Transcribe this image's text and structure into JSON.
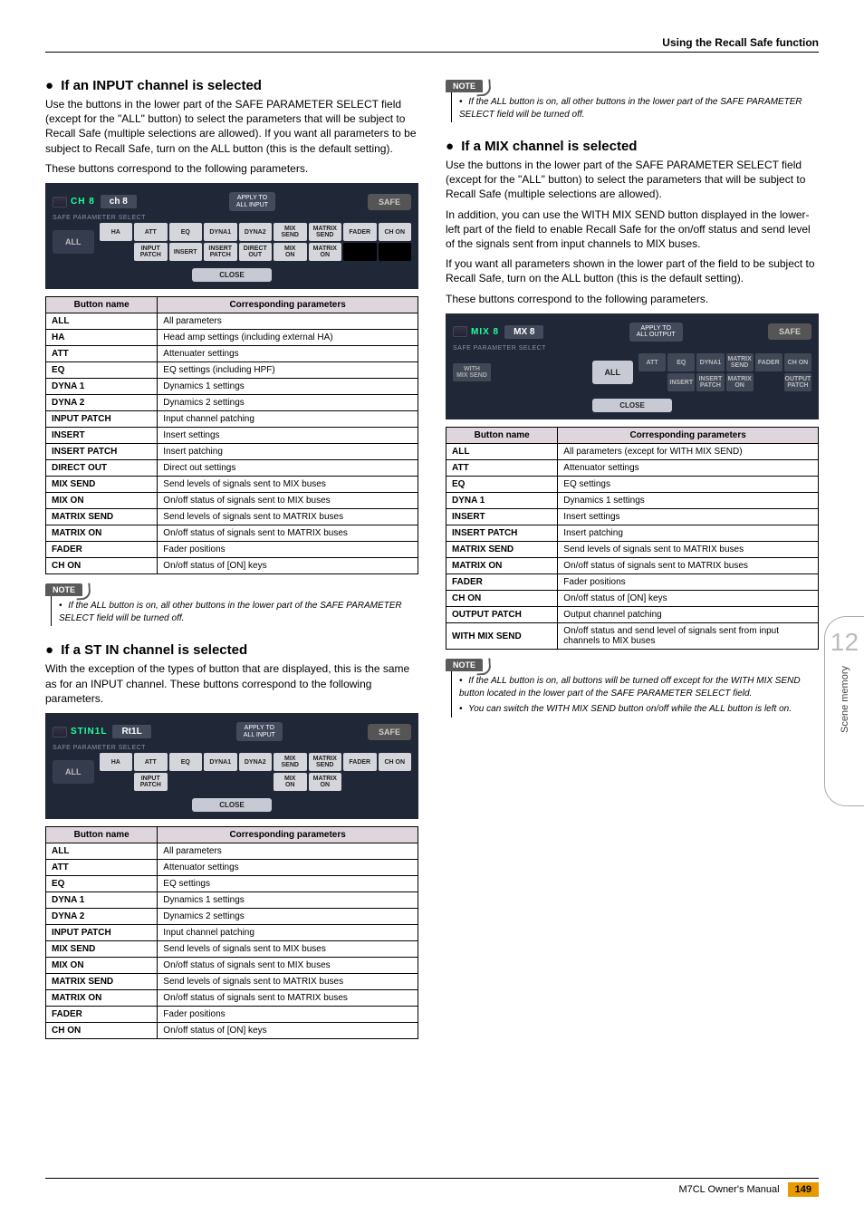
{
  "header": {
    "title": "Using the Recall Safe function"
  },
  "side_tab": {
    "number": "12",
    "label": "Scene memory"
  },
  "footer": {
    "manual": "M7CL  Owner's Manual",
    "page": "149"
  },
  "sec_input": {
    "heading": "If an INPUT channel is selected",
    "para1": "Use the buttons in the lower part of the SAFE PARAMETER SELECT field (except for the \"ALL\" button) to select the parameters that will be subject to Recall Safe (multiple selections are allowed). If you want all parameters to be subject to Recall Safe, turn on the ALL button (this is the default setting).",
    "para2": "These buttons correspond to the following parameters.",
    "panel": {
      "chan": "CH 8",
      "name": "ch 8",
      "apply": "APPLY TO\nALL INPUT",
      "safe": "SAFE",
      "sps": "SAFE PARAMETER SELECT",
      "all": "ALL",
      "close": "CLOSE",
      "r1": [
        "HA",
        "ATT",
        "EQ",
        "DYNA1",
        "DYNA2",
        "MIX\nSEND",
        "MATRIX\nSEND",
        "FADER",
        "CH ON"
      ],
      "r2": [
        "",
        "INPUT\nPATCH",
        "INSERT",
        "INSERT\nPATCH",
        "DIRECT\nOUT",
        "MIX\nON",
        "MATRIX\nON",
        "",
        ""
      ]
    },
    "table": {
      "h1": "Button name",
      "h2": "Corresponding parameters",
      "rows": [
        [
          "ALL",
          "All parameters"
        ],
        [
          "HA",
          "Head amp settings (including external HA)"
        ],
        [
          "ATT",
          "Attenuater settings"
        ],
        [
          "EQ",
          "EQ settings (including HPF)"
        ],
        [
          "DYNA 1",
          "Dynamics 1 settings"
        ],
        [
          "DYNA 2",
          "Dynamics 2 settings"
        ],
        [
          "INPUT PATCH",
          "Input channel patching"
        ],
        [
          "INSERT",
          "Insert settings"
        ],
        [
          "INSERT PATCH",
          "Insert patching"
        ],
        [
          "DIRECT OUT",
          "Direct out settings"
        ],
        [
          "MIX SEND",
          "Send levels of signals sent to MIX buses"
        ],
        [
          "MIX ON",
          "On/off status of signals sent to MIX buses"
        ],
        [
          "MATRIX SEND",
          "Send levels of signals sent to MATRIX buses"
        ],
        [
          "MATRIX ON",
          "On/off status of signals sent to MATRIX buses"
        ],
        [
          "FADER",
          "Fader positions"
        ],
        [
          "CH ON",
          "On/off status of [ON] keys"
        ]
      ]
    },
    "note": "If the ALL button is on, all other buttons in the lower part of the SAFE PARAMETER SELECT field will be turned off."
  },
  "sec_stin": {
    "heading": "If a ST IN channel is selected",
    "para1": "With the exception of the types of button that are displayed, this is the same as for an INPUT channel. These buttons correspond to the following parameters.",
    "panel": {
      "chan": "STIN1L",
      "name": "Rt1L",
      "apply": "APPLY TO\nALL INPUT",
      "safe": "SAFE",
      "sps": "SAFE PARAMETER SELECT",
      "all": "ALL",
      "close": "CLOSE",
      "r1": [
        "HA",
        "ATT",
        "EQ",
        "DYNA1",
        "DYNA2",
        "MIX\nSEND",
        "MATRIX\nSEND",
        "FADER",
        "CH ON"
      ],
      "r2": [
        "",
        "INPUT\nPATCH",
        "",
        "",
        "",
        "MIX\nON",
        "MATRIX\nON",
        "",
        ""
      ]
    },
    "table": {
      "h1": "Button name",
      "h2": "Corresponding parameters",
      "rows": [
        [
          "ALL",
          "All parameters"
        ],
        [
          "ATT",
          "Attenuator settings"
        ],
        [
          "EQ",
          "EQ settings"
        ],
        [
          "DYNA 1",
          "Dynamics 1 settings"
        ],
        [
          "DYNA 2",
          "Dynamics 2 settings"
        ],
        [
          "INPUT PATCH",
          "Input channel patching"
        ],
        [
          "MIX SEND",
          "Send levels of signals sent to MIX buses"
        ],
        [
          "MIX ON",
          "On/off status of signals sent to MIX buses"
        ],
        [
          "MATRIX SEND",
          "Send levels of signals sent to MATRIX buses"
        ],
        [
          "MATRIX ON",
          "On/off status of signals sent to MATRIX buses"
        ],
        [
          "FADER",
          "Fader positions"
        ],
        [
          "CH ON",
          "On/off status of [ON] keys"
        ]
      ]
    }
  },
  "sec_stin_note": {
    "note": "If the ALL button is on, all other buttons in the lower part of the SAFE PARAMETER SELECT field will be turned off."
  },
  "sec_mix": {
    "heading": "If a MIX channel is selected",
    "para1": "Use the buttons in the lower part of the SAFE PARAMETER SELECT field (except for the \"ALL\" button) to select the parameters that will be subject to Recall Safe (multiple selections are allowed).",
    "para2": "In addition, you can use the WITH MIX SEND button displayed in the lower-left part of the field to enable Recall Safe for the on/off status and send level of the signals sent from input channels to MIX buses.",
    "para3": "If you want all parameters shown in the lower part of the field to be subject to Recall Safe, turn on the ALL button (this is the default setting).",
    "para4": "These buttons correspond to the following parameters.",
    "panel": {
      "chan": "MIX 8",
      "name": "MX 8",
      "apply": "APPLY TO\nALL OUTPUT",
      "safe": "SAFE",
      "sps": "SAFE PARAMETER SELECT",
      "all": "ALL",
      "close": "CLOSE",
      "with": "WITH\nMIX SEND",
      "r1": [
        "ATT",
        "EQ",
        "DYNA1",
        "MATRIX\nSEND",
        "FADER",
        "CH ON"
      ],
      "r2": [
        "",
        "INSERT",
        "INSERT\nPATCH",
        "MATRIX\nON",
        "",
        "OUTPUT\nPATCH"
      ]
    },
    "table": {
      "h1": "Button name",
      "h2": "Corresponding parameters",
      "rows": [
        [
          "ALL",
          "All parameters (except for WITH MIX SEND)"
        ],
        [
          "ATT",
          "Attenuator settings"
        ],
        [
          "EQ",
          "EQ settings"
        ],
        [
          "DYNA 1",
          "Dynamics 1 settings"
        ],
        [
          "INSERT",
          "Insert settings"
        ],
        [
          "INSERT PATCH",
          "Insert patching"
        ],
        [
          "MATRIX SEND",
          "Send levels of signals sent to MATRIX buses"
        ],
        [
          "MATRIX ON",
          "On/off status of signals sent to MATRIX buses"
        ],
        [
          "FADER",
          "Fader positions"
        ],
        [
          "CH ON",
          "On/off status of [ON] keys"
        ],
        [
          "OUTPUT PATCH",
          "Output channel patching"
        ],
        [
          "WITH MIX SEND",
          "On/off status and send level of signals sent from input channels to MIX buses"
        ]
      ]
    },
    "note1": "If the ALL button is on, all buttons will be turned off except for the WITH MIX SEND button located in the lower part of the SAFE PARAMETER SELECT field.",
    "note2": "You can switch the WITH MIX SEND button on/off while the ALL button is left on."
  },
  "labels": {
    "note": "NOTE"
  },
  "style": {
    "colors": {
      "page_bg": "#ffffff",
      "text": "#000000",
      "panel_bg": "#202838",
      "panel_text": "#d0d4e0",
      "chan_green": "#22ff99",
      "name_box": "#424a5c",
      "btn_light": "#d4d6dc",
      "btn_dark": "#404858",
      "table_header_bg": "#ded6dc",
      "note_tag_bg": "#5a5a5a",
      "side_tab_num": "#bbbbbb",
      "page_badge_bg": "#e69a00"
    },
    "fonts": {
      "body_pt": 12,
      "heading_pt": 15,
      "table_pt": 10,
      "panel_pt": 8
    }
  }
}
